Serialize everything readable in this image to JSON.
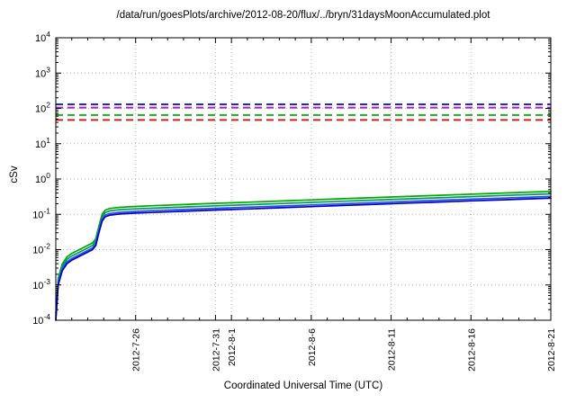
{
  "chart_data": {
    "type": "line",
    "title": "/data/run/goesPlots/archive/2012-08-20/flux/../bryn/31daysMoonAccumulated.plot",
    "xlabel": "Coordinated Universal Time (UTC)",
    "ylabel": "cSv",
    "y_scale": "log",
    "ylim": [
      0.0001,
      10000
    ],
    "y_tick_exponents": [
      4,
      3,
      2,
      1,
      0,
      -1,
      -2,
      -3,
      -4
    ],
    "grid": true,
    "x_range_days": [
      0,
      31
    ],
    "x_minor_tick_every_days": 1,
    "x_ticks": [
      {
        "day": 5,
        "label": "2012-7-26"
      },
      {
        "day": 10,
        "label": "2012-7-31"
      },
      {
        "day": 11,
        "label": "2012-8-1"
      },
      {
        "day": 16,
        "label": "2012-8-6"
      },
      {
        "day": 21,
        "label": "2012-8-11"
      },
      {
        "day": 26,
        "label": "2012-8-16"
      },
      {
        "day": 31,
        "label": "2012-8-21"
      }
    ],
    "limit_lines": [
      {
        "name": "blue-limit",
        "value": 130,
        "color": "#2222dd"
      },
      {
        "name": "magenta-limit",
        "value": 105,
        "color": "#aa22bb"
      },
      {
        "name": "green-limit",
        "value": 65,
        "color": "#22aa22"
      },
      {
        "name": "red-limit",
        "value": 47,
        "color": "#cc2222"
      }
    ],
    "series": [
      {
        "name": "accumulated-dose-green-upper",
        "color": "#00aa00",
        "points": [
          [
            0,
            0.000155
          ],
          [
            0.15,
            0.00155
          ],
          [
            0.4,
            0.0039
          ],
          [
            0.7,
            0.0062
          ],
          [
            1,
            0.0078
          ],
          [
            1.5,
            0.0101
          ],
          [
            2,
            0.0132
          ],
          [
            2.3,
            0.0155
          ],
          [
            2.5,
            0.0202
          ],
          [
            2.7,
            0.0465
          ],
          [
            2.9,
            0.101
          ],
          [
            3.1,
            0.132
          ],
          [
            3.4,
            0.147
          ],
          [
            4,
            0.158
          ],
          [
            5,
            0.167
          ],
          [
            6,
            0.175
          ],
          [
            8,
            0.189
          ],
          [
            10,
            0.205
          ],
          [
            12,
            0.22
          ],
          [
            14,
            0.237
          ],
          [
            16,
            0.256
          ],
          [
            18,
            0.276
          ],
          [
            20,
            0.298
          ],
          [
            22,
            0.321
          ],
          [
            24,
            0.346
          ],
          [
            26,
            0.372
          ],
          [
            28,
            0.4
          ],
          [
            30,
            0.429
          ],
          [
            31,
            0.445
          ]
        ]
      },
      {
        "name": "accumulated-dose-green-lower",
        "color": "#009966",
        "points": [
          [
            0,
            0.000132
          ],
          [
            0.15,
            0.00132
          ],
          [
            0.4,
            0.0033
          ],
          [
            0.7,
            0.0053
          ],
          [
            1,
            0.0066
          ],
          [
            1.5,
            0.0086
          ],
          [
            2,
            0.0112
          ],
          [
            2.3,
            0.0132
          ],
          [
            2.5,
            0.0172
          ],
          [
            2.7,
            0.0396
          ],
          [
            2.9,
            0.0858
          ],
          [
            3.1,
            0.112
          ],
          [
            3.4,
            0.125
          ],
          [
            4,
            0.135
          ],
          [
            5,
            0.143
          ],
          [
            6,
            0.149
          ],
          [
            8,
            0.161
          ],
          [
            10,
            0.174
          ],
          [
            12,
            0.187
          ],
          [
            14,
            0.202
          ],
          [
            16,
            0.218
          ],
          [
            18,
            0.235
          ],
          [
            20,
            0.253
          ],
          [
            22,
            0.273
          ],
          [
            24,
            0.294
          ],
          [
            26,
            0.317
          ],
          [
            28,
            0.341
          ],
          [
            30,
            0.366
          ],
          [
            31,
            0.379
          ]
        ]
      },
      {
        "name": "accumulated-dose-blue-upper",
        "color": "#2a52d8",
        "points": [
          [
            0,
            0.000112
          ],
          [
            0.15,
            0.00112
          ],
          [
            0.4,
            0.0028
          ],
          [
            0.7,
            0.0045
          ],
          [
            1,
            0.0056
          ],
          [
            1.5,
            0.0073
          ],
          [
            2,
            0.0095
          ],
          [
            2.3,
            0.0112
          ],
          [
            2.5,
            0.0146
          ],
          [
            2.7,
            0.0336
          ],
          [
            2.9,
            0.0728
          ],
          [
            3.1,
            0.0952
          ],
          [
            3.4,
            0.106
          ],
          [
            4,
            0.114
          ],
          [
            5,
            0.121
          ],
          [
            6,
            0.127
          ],
          [
            8,
            0.137
          ],
          [
            10,
            0.148
          ],
          [
            12,
            0.159
          ],
          [
            14,
            0.171
          ],
          [
            16,
            0.185
          ],
          [
            18,
            0.199
          ],
          [
            20,
            0.215
          ],
          [
            22,
            0.232
          ],
          [
            24,
            0.25
          ],
          [
            26,
            0.269
          ],
          [
            28,
            0.289
          ],
          [
            30,
            0.31
          ],
          [
            31,
            0.321
          ]
        ]
      },
      {
        "name": "accumulated-dose-blue-lower",
        "color": "#0000cc",
        "points": [
          [
            0,
            0.0001
          ],
          [
            0.15,
            0.001
          ],
          [
            0.4,
            0.0025
          ],
          [
            0.7,
            0.004
          ],
          [
            1,
            0.005
          ],
          [
            1.5,
            0.0065
          ],
          [
            2,
            0.0085
          ],
          [
            2.3,
            0.01
          ],
          [
            2.5,
            0.013
          ],
          [
            2.7,
            0.03
          ],
          [
            2.9,
            0.065
          ],
          [
            3.1,
            0.085
          ],
          [
            3.4,
            0.095
          ],
          [
            4,
            0.102
          ],
          [
            5,
            0.108
          ],
          [
            6,
            0.113
          ],
          [
            8,
            0.122
          ],
          [
            10,
            0.132
          ],
          [
            12,
            0.142
          ],
          [
            14,
            0.153
          ],
          [
            16,
            0.165
          ],
          [
            18,
            0.178
          ],
          [
            20,
            0.192
          ],
          [
            22,
            0.207
          ],
          [
            24,
            0.223
          ],
          [
            26,
            0.24
          ],
          [
            28,
            0.258
          ],
          [
            30,
            0.277
          ],
          [
            31,
            0.287
          ]
        ]
      }
    ],
    "colors": {
      "grid": "#b3b3b3",
      "axis": "#000000",
      "background": "#ffffff"
    }
  }
}
